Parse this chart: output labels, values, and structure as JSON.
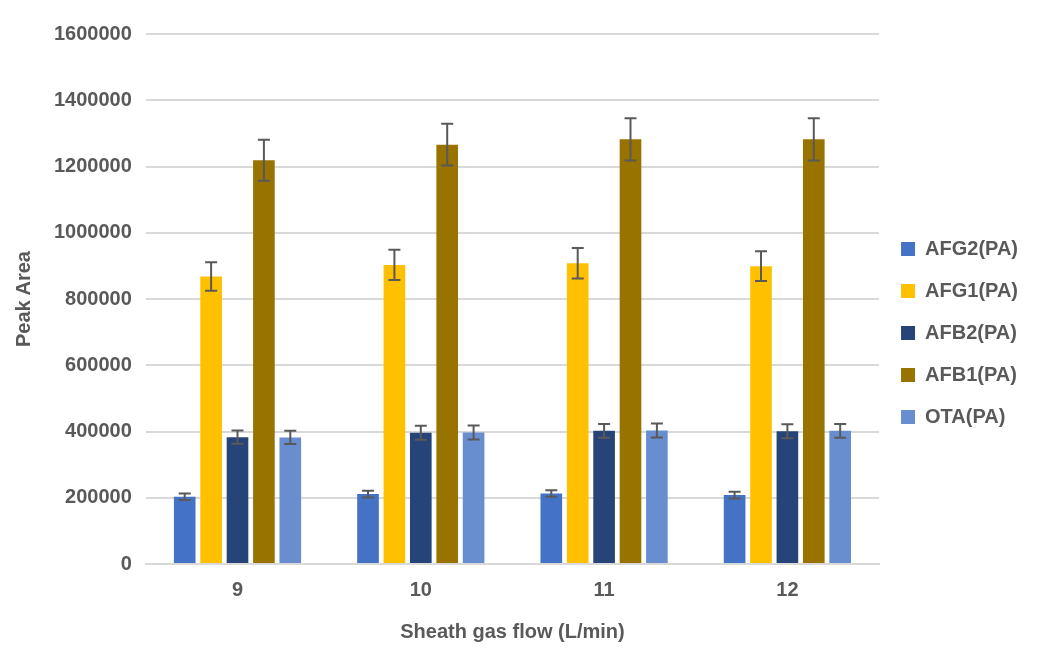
{
  "chart_data": {
    "type": "bar",
    "xlabel": "Sheath gas flow (L/min)",
    "ylabel": "Peak Area",
    "categories": [
      "9",
      "10",
      "11",
      "12"
    ],
    "series": [
      {
        "name": "AFG2(PA)",
        "color": "#4472c4",
        "values": [
          203000,
          211000,
          213000,
          208000
        ],
        "errors": [
          10000,
          10000,
          10000,
          10000
        ]
      },
      {
        "name": "AFG1(PA)",
        "color": "#ffc000",
        "values": [
          868000,
          903000,
          908000,
          899000
        ],
        "errors": [
          43000,
          46000,
          46000,
          45000
        ]
      },
      {
        "name": "AFB2(PA)",
        "color": "#264478",
        "values": [
          383000,
          396000,
          402000,
          401000
        ],
        "errors": [
          20000,
          21000,
          21000,
          21000
        ]
      },
      {
        "name": "AFB1(PA)",
        "color": "#997300",
        "values": [
          1219000,
          1266000,
          1282000,
          1282000
        ],
        "errors": [
          62000,
          63000,
          64000,
          64000
        ]
      },
      {
        "name": "OTA(PA)",
        "color": "#698ed0",
        "values": [
          382000,
          397000,
          403000,
          402000
        ],
        "errors": [
          20000,
          21000,
          21000,
          21000
        ]
      }
    ],
    "ylim": [
      0,
      1600000
    ],
    "yticks": [
      0,
      200000,
      400000,
      600000,
      800000,
      1000000,
      1200000,
      1400000,
      1600000
    ],
    "grid": "y",
    "legend": "right"
  }
}
